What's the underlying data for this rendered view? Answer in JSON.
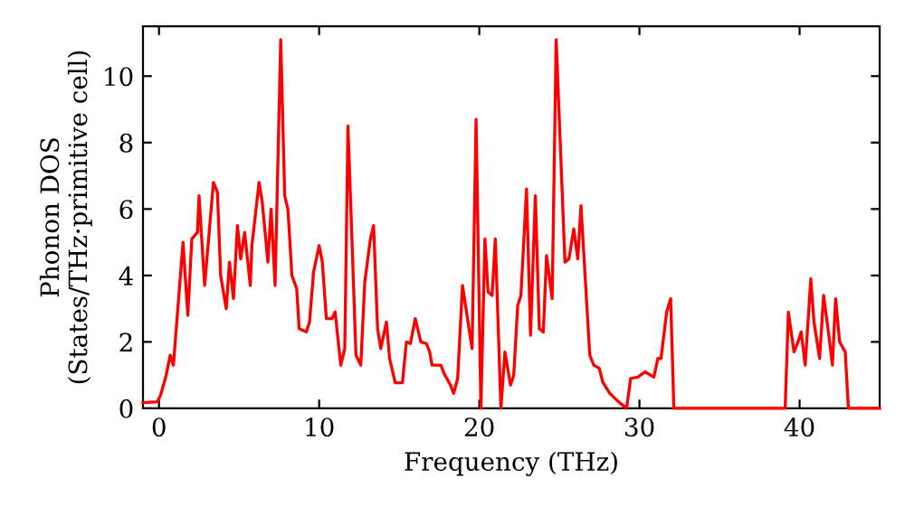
{
  "chart_data": {
    "type": "line",
    "xlabel": "Frequency (THz)",
    "ylabel": "Phonon DOS\n(States/THz·primitive cell)",
    "xlim": [
      -1,
      45
    ],
    "ylim": [
      0,
      11.5
    ],
    "xticks": [
      0,
      10,
      20,
      30,
      40
    ],
    "yticks": [
      0,
      2,
      4,
      6,
      8,
      10
    ],
    "grid": false,
    "marker": "none",
    "line_style": "solid",
    "series": [
      {
        "color": "#ff0000",
        "x": [
          -1,
          -0.1,
          0.1,
          0.45,
          0.7,
          0.9,
          1.5,
          1.8,
          2.05,
          2.4,
          2.5,
          2.85,
          3.4,
          3.65,
          3.85,
          4.2,
          4.4,
          4.65,
          4.9,
          5.1,
          5.35,
          5.7,
          5.8,
          6.25,
          6.45,
          6.8,
          7.0,
          7.25,
          7.6,
          7.85,
          8.05,
          8.3,
          8.6,
          8.75,
          9.2,
          9.4,
          9.65,
          10.0,
          10.2,
          10.45,
          10.8,
          11.0,
          11.35,
          11.6,
          11.8,
          12.3,
          12.6,
          12.85,
          13.2,
          13.4,
          13.65,
          13.85,
          14.2,
          14.4,
          14.75,
          15.2,
          15.45,
          15.7,
          16.0,
          16.35,
          16.7,
          16.9,
          17.05,
          17.6,
          17.8,
          18.2,
          18.4,
          18.65,
          18.95,
          19.55,
          19.8,
          20.1,
          20.35,
          20.55,
          20.8,
          21.0,
          21.35,
          21.6,
          21.95,
          22.15,
          22.4,
          22.6,
          22.95,
          23.2,
          23.5,
          23.75,
          24.0,
          24.2,
          24.55,
          24.8,
          25.35,
          25.6,
          25.9,
          26.15,
          26.35,
          26.9,
          27.15,
          27.5,
          27.7,
          28.15,
          28.75,
          29.2,
          29.45,
          29.9,
          30.35,
          30.9,
          31.15,
          31.35,
          31.7,
          31.95,
          32.15,
          39.1,
          39.3,
          39.65,
          39.9,
          40.1,
          40.35,
          40.7,
          40.9,
          41.25,
          41.5,
          41.8,
          42.05,
          42.25,
          42.5,
          42.85,
          43.05,
          45
        ],
        "values": [
          0.17,
          0.2,
          0.4,
          1.0,
          1.6,
          1.3,
          5.0,
          2.8,
          5.1,
          5.3,
          6.4,
          3.7,
          6.8,
          6.5,
          4.0,
          3.0,
          4.4,
          3.3,
          5.5,
          4.5,
          5.3,
          3.7,
          4.9,
          6.8,
          6.2,
          4.4,
          6.0,
          3.7,
          11.1,
          6.4,
          6.0,
          4.0,
          3.6,
          2.4,
          2.3,
          2.6,
          4.1,
          4.9,
          4.4,
          2.7,
          2.7,
          2.9,
          1.3,
          1.8,
          8.5,
          1.6,
          1.3,
          3.8,
          5.1,
          5.5,
          2.4,
          1.8,
          2.6,
          1.5,
          0.77,
          0.77,
          2.0,
          1.95,
          2.7,
          2.0,
          1.95,
          1.7,
          1.3,
          1.3,
          1.05,
          0.7,
          0.45,
          0.9,
          3.7,
          1.8,
          8.7,
          0,
          5.1,
          3.5,
          3.4,
          5.1,
          0,
          1.7,
          0.7,
          1.0,
          3.1,
          3.4,
          6.6,
          2.2,
          6.4,
          2.4,
          2.3,
          4.6,
          3.3,
          11.1,
          4.4,
          4.5,
          5.4,
          4.5,
          6.1,
          1.6,
          1.3,
          1.2,
          0.8,
          0.45,
          0.17,
          0,
          0.9,
          0.94,
          1.1,
          0.94,
          1.5,
          1.5,
          2.9,
          3.3,
          0,
          0,
          2.9,
          1.7,
          2.0,
          2.3,
          1.3,
          3.9,
          2.6,
          1.5,
          3.4,
          2.3,
          1.3,
          3.3,
          2.0,
          1.7,
          0,
          0
        ]
      }
    ]
  }
}
